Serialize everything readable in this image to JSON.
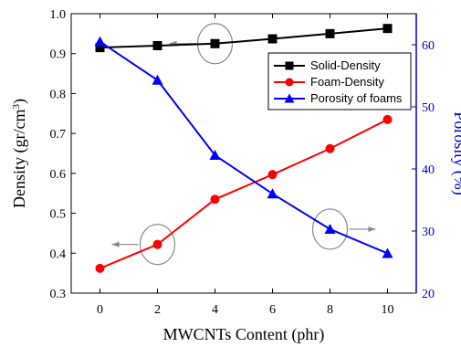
{
  "chart_data": {
    "type": "line",
    "x": [
      0,
      2,
      4,
      6,
      8,
      10
    ],
    "xlabel": "MWCNTs Content (phr)",
    "xlim": [
      -1,
      11
    ],
    "xticks": [
      0,
      2,
      4,
      6,
      8,
      10
    ],
    "ylabel": "Density (gr/cm",
    "ylabel_sup": "3",
    "ylabel_close": ")",
    "ylim": [
      0.3,
      1.0
    ],
    "yticks": [
      "0.3",
      "0.4",
      "0.5",
      "0.6",
      "0.7",
      "0.8",
      "0.9",
      "1.0"
    ],
    "y2label": "Porosity (%)",
    "y2lim": [
      20,
      65
    ],
    "y2ticks": [
      "20",
      "30",
      "40",
      "50",
      "60"
    ],
    "grid": false,
    "legend_position": "top-right",
    "series": [
      {
        "name": "Solid-Density",
        "axis": "left",
        "color": "#000000",
        "marker": "square",
        "values": [
          0.915,
          0.92,
          0.925,
          0.937,
          0.95,
          0.963
        ]
      },
      {
        "name": "Foam-Density",
        "axis": "left",
        "color": "#ff0000",
        "marker": "circle",
        "values": [
          0.362,
          0.422,
          0.535,
          0.597,
          0.662,
          0.735
        ]
      },
      {
        "name": "Porosity of foams",
        "axis": "right",
        "color": "#0000ff",
        "marker": "triangle",
        "values": [
          60.5,
          54.3,
          42.2,
          36.0,
          30.3,
          26.4
        ]
      }
    ],
    "annotations": [
      {
        "type": "ellipse-arrow",
        "target": "Solid-Density",
        "x": 4,
        "y": 0.925,
        "arrow": "left"
      },
      {
        "type": "ellipse-arrow",
        "target": "Foam-Density",
        "x": 2,
        "y": 0.422,
        "arrow": "left"
      },
      {
        "type": "ellipse-arrow",
        "target": "Porosity of foams",
        "x": 8,
        "y": 30.3,
        "arrow": "right"
      }
    ]
  },
  "colors": {
    "left_axis": "#000000",
    "right_axis": "#0000cc",
    "annotation": "#888888"
  }
}
